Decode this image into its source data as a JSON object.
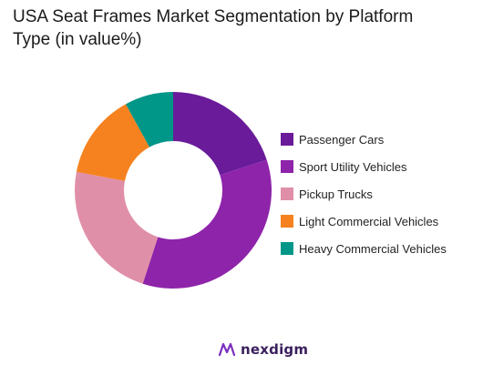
{
  "chart_data": {
    "type": "pie",
    "variant": "donut",
    "title": "USA Seat Frames Market Segmentation by Platform\n Type (in value%)",
    "categories": [
      "Passenger Cars",
      "Sport Utility Vehicles",
      "Pickup Trucks",
      "Light Commercial Vehicles",
      "Heavy Commercial Vehicles"
    ],
    "values": [
      20,
      35,
      23,
      14,
      8
    ],
    "unit": "%",
    "colors": [
      "#6a1b9a",
      "#8e24aa",
      "#e08fa8",
      "#f5821f",
      "#009688"
    ],
    "legend_position": "right"
  },
  "brand": {
    "name": "nexdigm",
    "text_color": "#3a1f5d",
    "icon": "nexdigm-logo-icon",
    "icon_color": "#7b2fbf"
  }
}
